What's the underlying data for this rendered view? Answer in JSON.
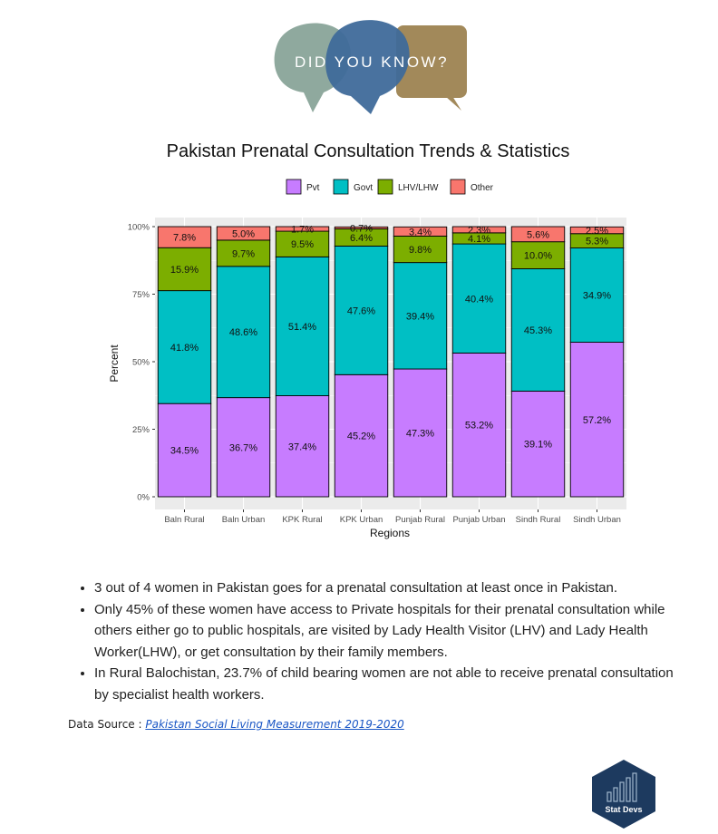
{
  "logo": {
    "text": "DID YOU KNOW?",
    "colors": [
      "#8fa99e",
      "#3f6a9a",
      "#a2895a"
    ]
  },
  "chart_data": {
    "type": "bar",
    "stacked": true,
    "title": "Pakistan Prenatal Consultation Trends & Statistics",
    "xlabel": "Regions",
    "ylabel": "Percent",
    "ylim": [
      0,
      100
    ],
    "yticks": [
      "0%",
      "25%",
      "50%",
      "75%",
      "100%"
    ],
    "legend_position": "top",
    "grid": true,
    "categories": [
      "Baln Rural",
      "Baln Urban",
      "KPK Rural",
      "KPK Urban",
      "Punjab Rural",
      "Punjab Urban",
      "Sindh Rural",
      "Sindh Urban"
    ],
    "series": [
      {
        "name": "Pvt",
        "color": "#c77cff",
        "values": [
          34.5,
          36.7,
          37.4,
          45.2,
          47.3,
          53.2,
          39.1,
          57.2
        ],
        "labels": [
          "34.5%",
          "36.7%",
          "37.4%",
          "45.2%",
          "47.3%",
          "53.2%",
          "39.1%",
          "57.2%"
        ]
      },
      {
        "name": "Govt",
        "color": "#00bfc4",
        "values": [
          41.8,
          48.6,
          51.4,
          47.6,
          39.4,
          40.4,
          45.3,
          34.9
        ],
        "labels": [
          "41.8%",
          "48.6%",
          "51.4%",
          "47.6%",
          "39.4%",
          "40.4%",
          "45.3%",
          "34.9%"
        ]
      },
      {
        "name": "LHV/LHW",
        "color": "#7cae00",
        "values": [
          15.9,
          9.7,
          9.5,
          6.4,
          9.8,
          4.1,
          10.0,
          5.3
        ],
        "labels": [
          "15.9%",
          "9.7%",
          "9.5%",
          "6.4%",
          "9.8%",
          "4.1%",
          "10.0%",
          "5.3%"
        ]
      },
      {
        "name": "Other",
        "color": "#f8766d",
        "values": [
          7.8,
          5.0,
          1.7,
          0.7,
          3.4,
          2.3,
          5.6,
          2.5
        ],
        "labels": [
          "7.8%",
          "5.0%",
          "1.7%",
          "0.7%",
          "3.4%",
          "2.3%",
          "5.6%",
          "2.5%"
        ]
      }
    ]
  },
  "bullets": [
    "3 out of 4 women in Pakistan goes for a prenatal consultation at least once in Pakistan.",
    "Only 45% of these women have access to Private hospitals for their prenatal consultation while others either go to public hospitals, are visited by Lady Health Visitor (LHV) and Lady Health Worker(LHW), or get consultation by their family members.",
    "In Rural Balochistan, 23.7% of child bearing women are not able to receive prenatal consultation by specialist health workers."
  ],
  "source": {
    "label": "Data Source :",
    "link_text": "Pakistan Social Living Measurement 2019-2020"
  },
  "badge": {
    "text": "Stat Devs",
    "color": "#1d3a5f"
  }
}
